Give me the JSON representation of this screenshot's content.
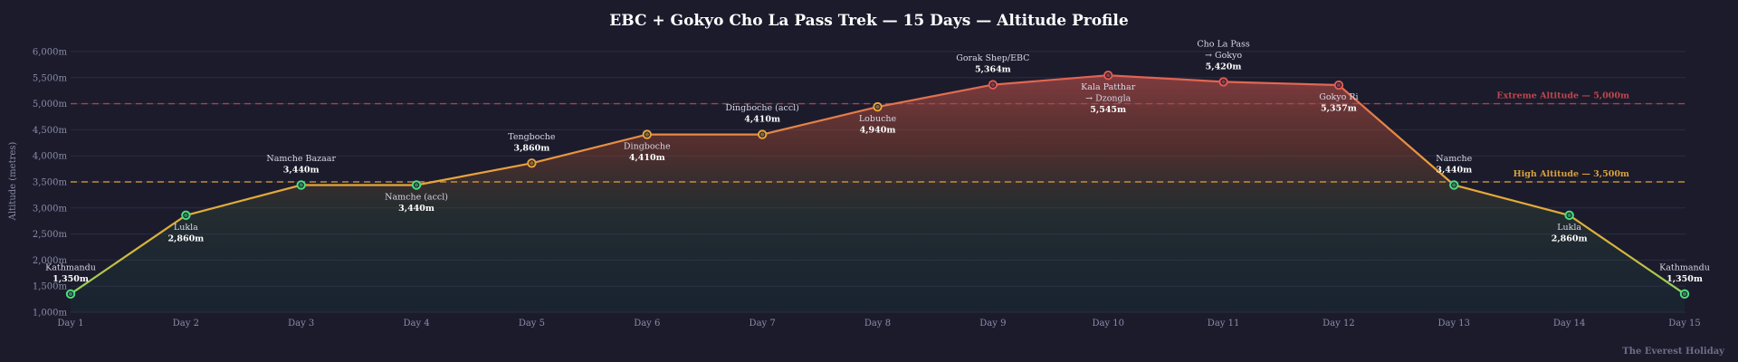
{
  "chart_data": {
    "type": "line",
    "title": "EBC + Gokyo Cho La Pass Trek — 15 Days — Altitude Profile",
    "ylabel": "Altitude (metres)",
    "xlabel": "",
    "ylim": [
      1000,
      6000
    ],
    "y_ticks": [
      "1,000m",
      "1,500m",
      "2,000m",
      "2,500m",
      "3,000m",
      "3,500m",
      "4,000m",
      "4,500m",
      "5,000m",
      "5,500m",
      "6,000m"
    ],
    "y_tick_values": [
      1000,
      1500,
      2000,
      2500,
      3000,
      3500,
      4000,
      4500,
      5000,
      5500,
      6000
    ],
    "categories": [
      "Day 1",
      "Day 2",
      "Day 3",
      "Day 4",
      "Day 5",
      "Day 6",
      "Day 7",
      "Day 8",
      "Day 9",
      "Day 10",
      "Day 11",
      "Day 12",
      "Day 13",
      "Day 14",
      "Day 15"
    ],
    "values": [
      1350,
      2860,
      3440,
      3440,
      3860,
      4410,
      4410,
      4940,
      5364,
      5545,
      5420,
      5357,
      3440,
      2860,
      1350
    ],
    "point_labels": [
      {
        "name": [
          "Kathmandu"
        ],
        "value": "1,350m",
        "position": "above"
      },
      {
        "name": [
          "Lukla"
        ],
        "value": "2,860m",
        "position": "below"
      },
      {
        "name": [
          "Namche Bazaar"
        ],
        "value": "3,440m",
        "position": "above"
      },
      {
        "name": [
          "Namche (accl)"
        ],
        "value": "3,440m",
        "position": "below"
      },
      {
        "name": [
          "Tengboche"
        ],
        "value": "3,860m",
        "position": "above"
      },
      {
        "name": [
          "Dingboche"
        ],
        "value": "4,410m",
        "position": "below"
      },
      {
        "name": [
          "Dingboche (accl)"
        ],
        "value": "4,410m",
        "position": "above"
      },
      {
        "name": [
          "Lobuche"
        ],
        "value": "4,940m",
        "position": "below"
      },
      {
        "name": [
          "Gorak Shep/EBC"
        ],
        "value": "5,364m",
        "position": "above"
      },
      {
        "name": [
          "Kala Patthar",
          "→ Dzongla"
        ],
        "value": "5,545m",
        "position": "below"
      },
      {
        "name": [
          "Cho La Pass",
          "→ Gokyo"
        ],
        "value": "5,420m",
        "position": "above"
      },
      {
        "name": [
          "Gokyo Ri"
        ],
        "value": "5,357m",
        "position": "below"
      },
      {
        "name": [
          "Namche"
        ],
        "value": "3,440m",
        "position": "above"
      },
      {
        "name": [
          "Lukla"
        ],
        "value": "2,860m",
        "position": "below"
      },
      {
        "name": [
          "Kathmandu"
        ],
        "value": "1,350m",
        "position": "above"
      }
    ],
    "reference_lines": [
      {
        "value": 5000,
        "label": "Extreme Altitude — 5,000m",
        "color": "#c0474d"
      },
      {
        "value": 3500,
        "label": "High Altitude — 3,500m",
        "color": "#d9a13b"
      }
    ],
    "grid": true,
    "legend": "none"
  },
  "colors": {
    "background": "#1b1b2c",
    "grid": "#2c2c42",
    "low": "#4ade80",
    "mid": "#e9a43a",
    "high": "#e05a56"
  },
  "watermark": "The Everest Holiday"
}
